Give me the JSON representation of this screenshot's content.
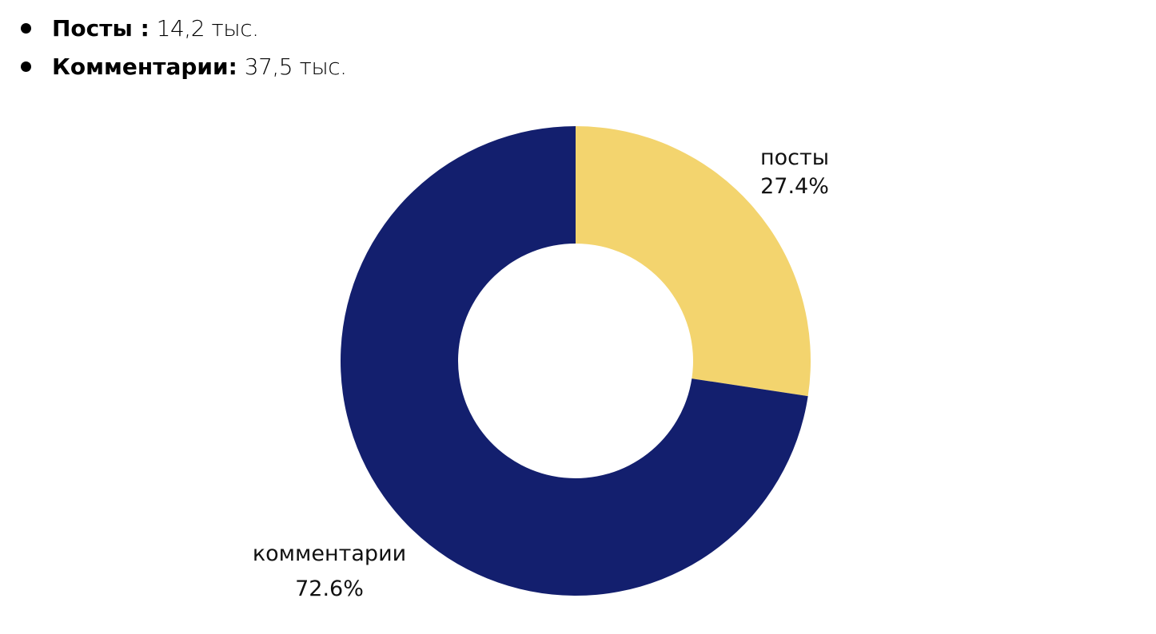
{
  "stats": [
    {
      "label": "Посты :",
      "value": "14,2 тыс."
    },
    {
      "label": "Комментарии:",
      "value": "37,5 тыс."
    }
  ],
  "labels": {
    "posts_name": "посты",
    "posts_pct": "27.4%",
    "comments_name": "комментарии",
    "comments_pct": "72.6%"
  },
  "colors": {
    "posts": "#F3D46E",
    "comments": "#131F6E"
  },
  "chart_data": {
    "type": "pie",
    "variant": "donut",
    "categories": [
      "посты",
      "комментарии"
    ],
    "values": [
      27.4,
      72.6
    ],
    "absolute_values": [
      14.2,
      37.5
    ],
    "units": "тыс.",
    "colors": [
      "#F3D46E",
      "#131F6E"
    ],
    "title": "",
    "legend": "none (inline data labels)"
  }
}
